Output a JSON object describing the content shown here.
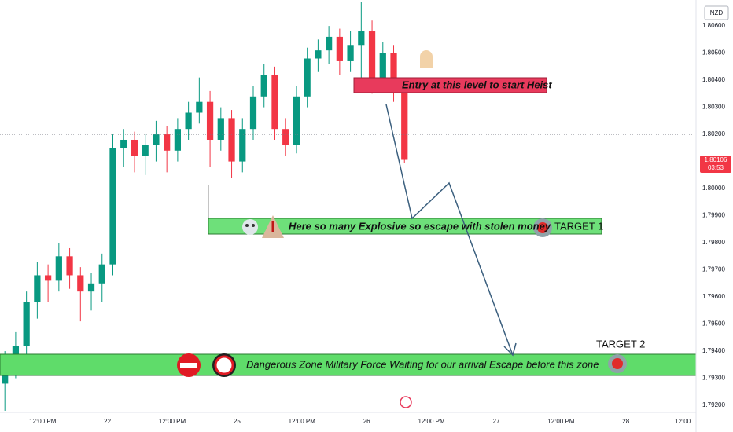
{
  "chart_data": {
    "type": "candlestick",
    "x": [
      5,
      7,
      9,
      11,
      13,
      15,
      17,
      19,
      21,
      23,
      25,
      27,
      29,
      31,
      33,
      35,
      37,
      39,
      41,
      43,
      45,
      47,
      49,
      51,
      53,
      55,
      57,
      59,
      61,
      63,
      65,
      67,
      69,
      71,
      73,
      75,
      77,
      79
    ],
    "open": [
      1.7928,
      1.7935,
      1.7942,
      1.7958,
      1.7968,
      1.7966,
      1.7975,
      1.7968,
      1.7962,
      1.7965,
      1.7972,
      1.8015,
      1.8018,
      1.8012,
      1.8016,
      1.802,
      1.8014,
      1.8022,
      1.8028,
      1.8032,
      1.8018,
      1.8026,
      1.801,
      1.8022,
      1.8034,
      1.8042,
      1.8022,
      1.8016,
      1.8034,
      1.8048,
      1.8051,
      1.8056,
      1.8047,
      1.8053,
      1.8058,
      1.804,
      1.805,
      1.8038
    ],
    "high": [
      1.794,
      1.7947,
      1.7962,
      1.7973,
      1.7972,
      1.798,
      1.7978,
      1.7971,
      1.7969,
      1.7976,
      1.802,
      1.8022,
      1.8021,
      1.802,
      1.8025,
      1.8023,
      1.8026,
      1.8032,
      1.8041,
      1.8036,
      1.803,
      1.8029,
      1.8026,
      1.8038,
      1.8046,
      1.8045,
      1.8026,
      1.8038,
      1.8052,
      1.8055,
      1.806,
      1.8059,
      1.8058,
      1.8069,
      1.8062,
      1.8054,
      1.8053,
      1.8041
    ],
    "low": [
      1.7918,
      1.793,
      1.7938,
      1.7952,
      1.7958,
      1.7962,
      1.7963,
      1.7951,
      1.7955,
      1.7958,
      1.7968,
      1.8008,
      1.8006,
      1.8005,
      1.801,
      1.8006,
      1.801,
      1.8018,
      1.8024,
      1.8008,
      1.8014,
      1.8004,
      1.8006,
      1.8018,
      1.803,
      1.8018,
      1.8012,
      1.8013,
      1.803,
      1.8043,
      1.8046,
      1.8042,
      1.8043,
      1.8038,
      1.8035,
      1.8036,
      1.8032,
      1.80095
    ],
    "close": [
      1.7935,
      1.7942,
      1.7958,
      1.7968,
      1.7966,
      1.7975,
      1.7968,
      1.7962,
      1.7965,
      1.7972,
      1.8015,
      1.8018,
      1.8012,
      1.8016,
      1.802,
      1.8014,
      1.8022,
      1.8028,
      1.8032,
      1.8018,
      1.8026,
      1.801,
      1.8022,
      1.8034,
      1.8042,
      1.8022,
      1.8016,
      1.8034,
      1.8048,
      1.8051,
      1.8056,
      1.8047,
      1.8053,
      1.8058,
      1.804,
      1.805,
      1.8038,
      1.80106
    ],
    "up_color": "#089981",
    "down_color": "#f23645",
    "xlim": [
      4.1,
      133
    ],
    "xticks": [
      {
        "value": 12,
        "label": "12:00 PM"
      },
      {
        "value": 24,
        "label": "22"
      },
      {
        "value": 36,
        "label": "12:00 PM"
      },
      {
        "value": 48,
        "label": "25"
      },
      {
        "value": 60,
        "label": "12:00 PM"
      },
      {
        "value": 72,
        "label": "26"
      },
      {
        "value": 84,
        "label": "12:00 PM"
      },
      {
        "value": 96,
        "label": "27"
      },
      {
        "value": 108,
        "label": "12:00 PM"
      },
      {
        "value": 120,
        "label": "28"
      },
      {
        "value": 132,
        "label": "12:00"
      }
    ],
    "ylim": [
      1.79174,
      1.80696
    ],
    "yticks": [
      {
        "value": 1.792,
        "label": "1.79200"
      },
      {
        "value": 1.793,
        "label": "1.79300"
      },
      {
        "value": 1.794,
        "label": "1.79400"
      },
      {
        "value": 1.795,
        "label": "1.79500"
      },
      {
        "value": 1.796,
        "label": "1.79600"
      },
      {
        "value": 1.797,
        "label": "1.79700"
      },
      {
        "value": 1.798,
        "label": "1.79800"
      },
      {
        "value": 1.799,
        "label": "1.79900"
      },
      {
        "value": 1.8,
        "label": "1.80000"
      },
      {
        "value": 1.802,
        "label": "1.80200"
      },
      {
        "value": 1.803,
        "label": "1.80300"
      },
      {
        "value": 1.804,
        "label": "1.80400"
      },
      {
        "value": 1.805,
        "label": "1.80500"
      },
      {
        "value": 1.806,
        "label": "1.80600"
      }
    ],
    "grid": false,
    "currency": "NZD",
    "price_label": "1.80106",
    "countdown": "03:53",
    "annotations": {
      "entry": "Entry at this level to start Heist",
      "zone1": "Here so many Explosive so escape with stolen money",
      "target1": "TARGET 1",
      "zone2": "Dangerous Zone Military Force Waiting for our arrival Escape before this zone",
      "target2": "TARGET 2"
    }
  }
}
